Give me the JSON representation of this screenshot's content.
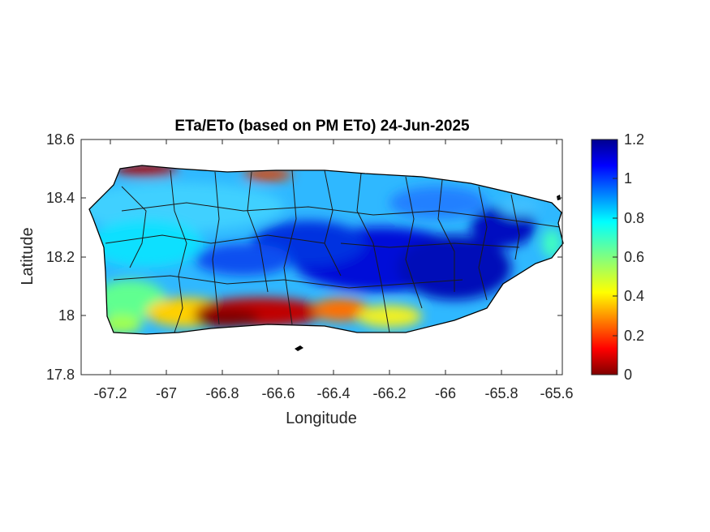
{
  "title": "ETa/ETo (based on PM ETo) 24-Jun-2025",
  "xlabel": "Longitude",
  "ylabel": "Latitude",
  "x_ticks": [
    "-67.2",
    "-67",
    "-66.8",
    "-66.6",
    "-66.4",
    "-66.2",
    "-66",
    "-65.8",
    "-65.6"
  ],
  "y_ticks": [
    "18.6",
    "18.4",
    "18.2",
    "18",
    "17.8"
  ],
  "colorbar_ticks": [
    "1.2",
    "1",
    "0.8",
    "0.6",
    "0.4",
    "0.2",
    "0"
  ],
  "chart_data": {
    "type": "heatmap",
    "title": "ETa/ETo (based on PM ETo) 24-Jun-2025",
    "xlabel": "Longitude",
    "ylabel": "Latitude",
    "xlim": [
      -67.3,
      -65.58
    ],
    "ylim": [
      17.8,
      18.6
    ],
    "colorbar": {
      "colormap": "jet",
      "range": [
        0,
        1.2
      ]
    },
    "grid": false
  }
}
